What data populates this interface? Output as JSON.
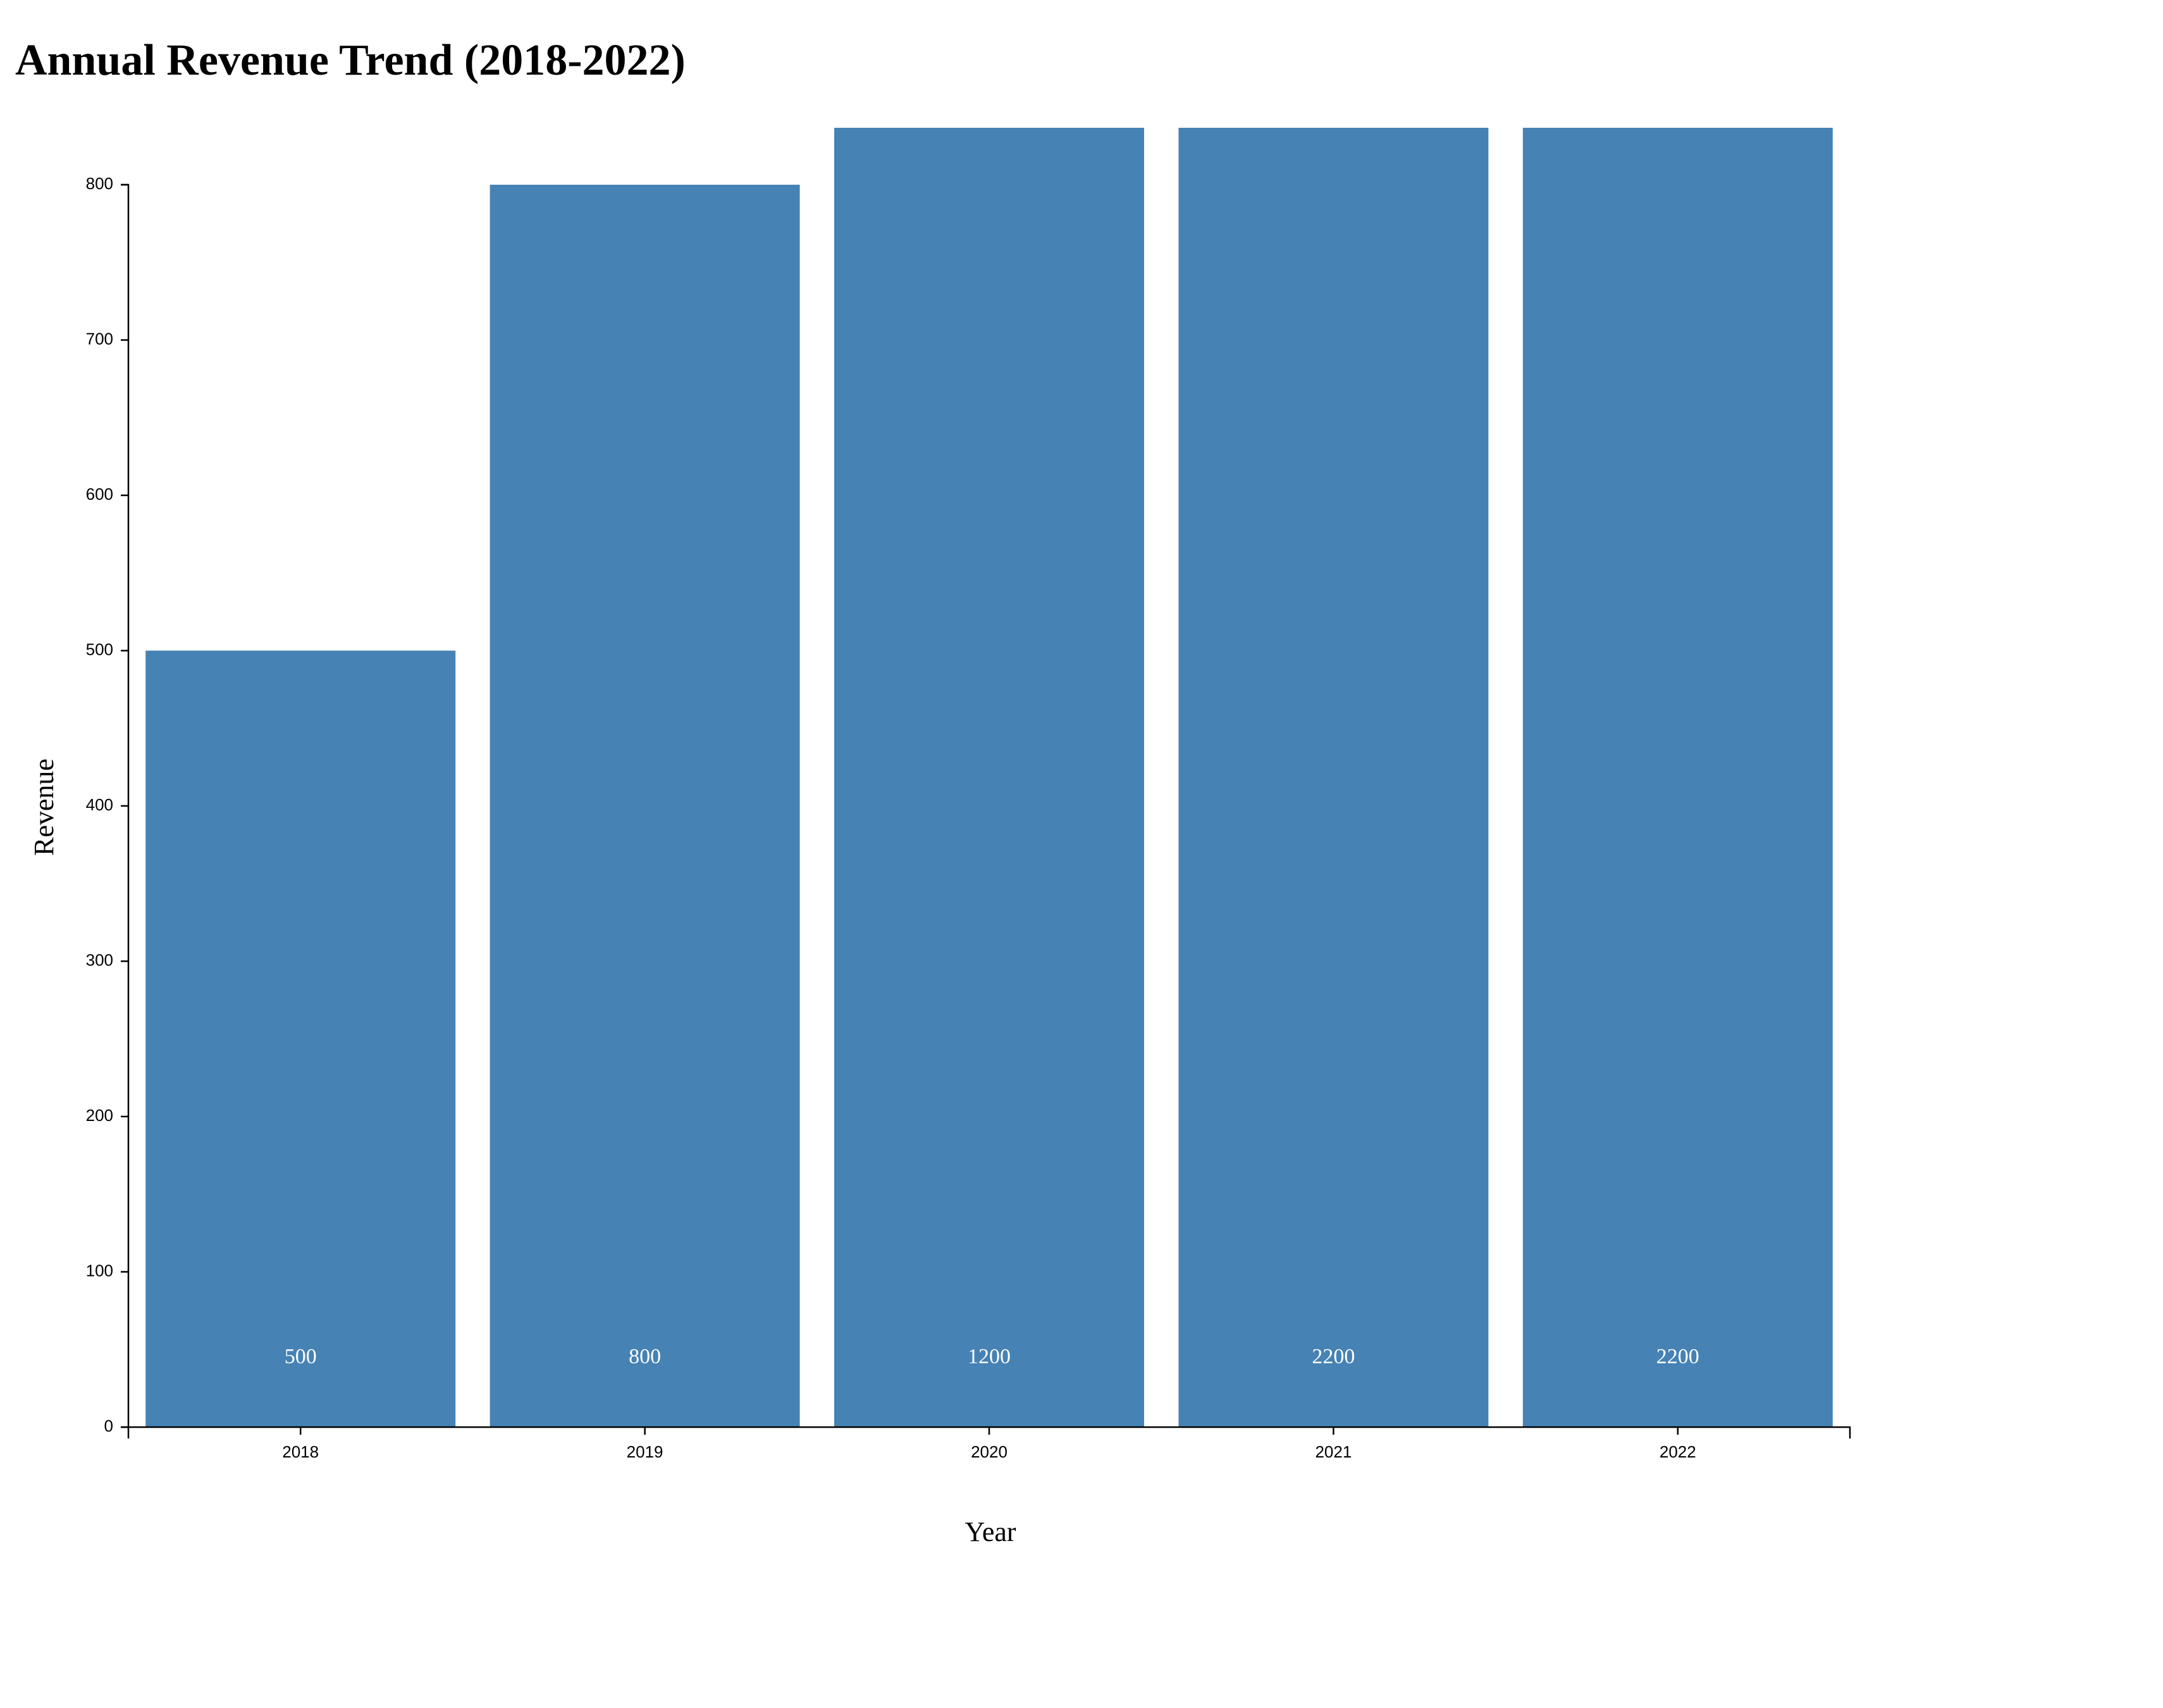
{
  "chart_data": {
    "type": "bar",
    "title": "Annual Revenue Trend (2018-2022)",
    "xlabel": "Year",
    "ylabel": "Revenue",
    "categories": [
      "2018",
      "2019",
      "2020",
      "2021",
      "2022"
    ],
    "values": [
      500,
      800,
      1200,
      2200,
      2200
    ],
    "data_labels": [
      "500",
      "800",
      "1200",
      "2200",
      "2200"
    ],
    "ylim": [
      0,
      800
    ],
    "yticks": [
      0,
      100,
      200,
      300,
      400,
      500,
      600,
      700,
      800
    ],
    "bar_color": "#4682b4",
    "label_color": "#ffffff",
    "bars_clipped_at_top": true,
    "grid": false,
    "legend": "none"
  }
}
